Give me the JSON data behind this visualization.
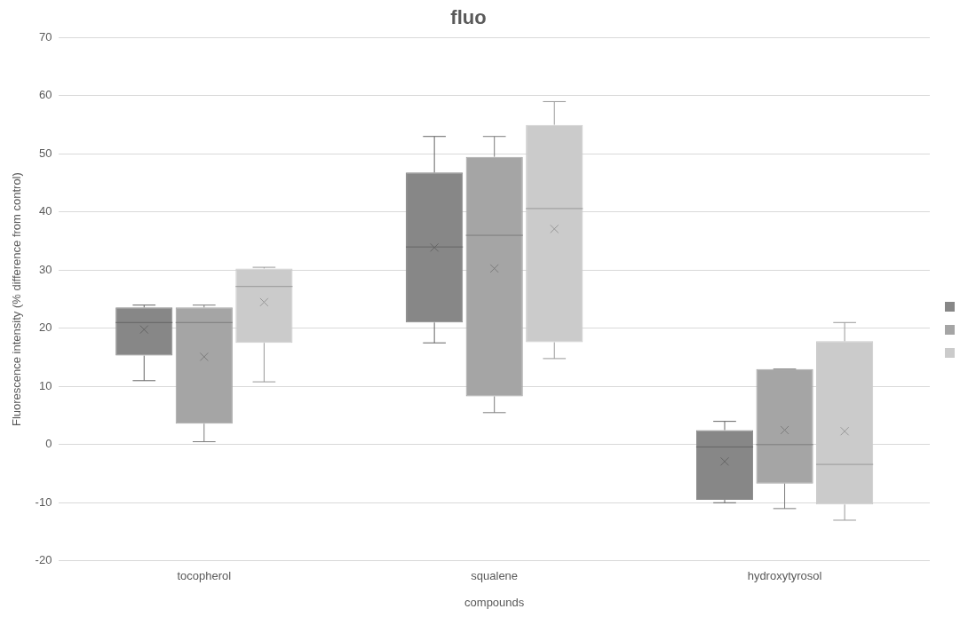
{
  "chart_data": {
    "type": "box",
    "title": "fluo",
    "xlabel": "compounds",
    "ylabel": "Fluorescence intensity (% difference from control)",
    "categories": [
      "tocopherol",
      "squalene",
      "hydroxytyrosol"
    ],
    "ylim": [
      -20,
      70
    ],
    "yticks": [
      -20,
      -10,
      0,
      10,
      20,
      30,
      40,
      50,
      60,
      70
    ],
    "grid": "y",
    "series": [
      {
        "color": "#878787",
        "boxes": [
          {
            "low": 11,
            "q1": 15.3,
            "median": 21,
            "q3": 23.6,
            "high": 24,
            "mean": 19.8
          },
          {
            "low": 17.5,
            "q1": 21,
            "median": 34,
            "q3": 46.8,
            "high": 53,
            "mean": 33.9
          },
          {
            "low": -10,
            "q1": -9.5,
            "median": -0.4,
            "q3": 2.5,
            "high": 4,
            "mean": -2.9
          }
        ]
      },
      {
        "color": "#a5a5a5",
        "boxes": [
          {
            "low": 0.5,
            "q1": 3.6,
            "median": 21,
            "q3": 23.6,
            "high": 24,
            "mean": 15.1
          },
          {
            "low": 5.5,
            "q1": 8.3,
            "median": 36,
            "q3": 49.5,
            "high": 53,
            "mean": 30.3
          },
          {
            "low": -11,
            "q1": -6.7,
            "median": 0,
            "q3": 13,
            "high": 13,
            "mean": 2.5
          }
        ]
      },
      {
        "color": "#cbcbcb",
        "boxes": [
          {
            "low": 10.8,
            "q1": 17.5,
            "median": 27.2,
            "q3": 30.3,
            "high": 30.5,
            "mean": 24.5
          },
          {
            "low": 14.8,
            "q1": 17.6,
            "median": 40.6,
            "q3": 55,
            "high": 59,
            "mean": 37.1
          },
          {
            "low": -13,
            "q1": -10.3,
            "median": -3.4,
            "q3": 17.8,
            "high": 21,
            "mean": 2.3
          }
        ]
      }
    ]
  }
}
